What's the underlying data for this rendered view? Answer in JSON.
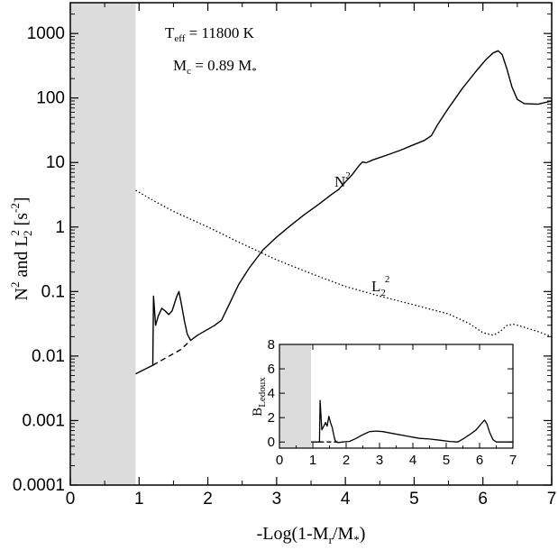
{
  "chart_data": [
    {
      "type": "line",
      "xlabel": {
        "main": "-Log(1-M",
        "sub1": "r",
        "mid": "/M",
        "sub2": "*",
        "end": ")"
      },
      "ylabel": {
        "n": "N",
        "n_exp": "2",
        "and": " and L",
        "l_exp": "2",
        "l_sub": "2",
        "units": " [s",
        "u_exp": "-2",
        "close": "]"
      },
      "xlim": [
        0,
        7
      ],
      "ylim": [
        0.0001,
        3000
      ],
      "yscale": "log",
      "x_ticks": [
        "0",
        "1",
        "2",
        "3",
        "4",
        "5",
        "6",
        "7"
      ],
      "y_ticks": [
        "0.0001",
        "0.001",
        "0.01",
        "0.1",
        "1",
        "10",
        "100",
        "1000"
      ],
      "shaded_region": [
        0,
        0.95
      ],
      "shaded_color": "#dcdcdc",
      "annotations": {
        "teff": {
          "main": "T",
          "sub": "eff",
          "rest": " = 11800 K"
        },
        "mc": {
          "main": "M",
          "sub": "c",
          "rest": " = 0.89 M",
          "sub2": "*"
        },
        "n2": {
          "main": "N",
          "sup": "2"
        },
        "l2": {
          "main": "L",
          "sub": "2",
          "sup": "2"
        }
      },
      "series": [
        {
          "style": "solid",
          "color": "#000000",
          "points": [
            [
              0.95,
              0.0053
            ],
            [
              1.2,
              0.0072
            ],
            [
              1.21,
              0.085
            ],
            [
              1.24,
              0.03
            ],
            [
              1.28,
              0.042
            ],
            [
              1.33,
              0.055
            ],
            [
              1.38,
              0.05
            ],
            [
              1.43,
              0.044
            ],
            [
              1.48,
              0.05
            ],
            [
              1.55,
              0.085
            ],
            [
              1.58,
              0.1
            ],
            [
              1.62,
              0.06
            ],
            [
              1.66,
              0.035
            ],
            [
              1.7,
              0.022
            ],
            [
              1.75,
              0.0175
            ],
            [
              1.85,
              0.021
            ],
            [
              2.0,
              0.026
            ],
            [
              2.1,
              0.03
            ],
            [
              2.2,
              0.036
            ],
            [
              2.3,
              0.06
            ],
            [
              2.45,
              0.13
            ],
            [
              2.6,
              0.23
            ],
            [
              2.8,
              0.44
            ],
            [
              3.0,
              0.7
            ],
            [
              3.2,
              1.05
            ],
            [
              3.4,
              1.55
            ],
            [
              3.6,
              2.2
            ],
            [
              3.8,
              3.2
            ],
            [
              3.9,
              3.8
            ],
            [
              4.0,
              5.0
            ],
            [
              4.1,
              6.5
            ],
            [
              4.2,
              9.0
            ],
            [
              4.25,
              10.2
            ],
            [
              4.3,
              9.9
            ],
            [
              4.4,
              11.0
            ],
            [
              4.6,
              13.0
            ],
            [
              4.8,
              15.5
            ],
            [
              5.0,
              19.0
            ],
            [
              5.15,
              22.0
            ],
            [
              5.25,
              26.0
            ],
            [
              5.35,
              40.0
            ],
            [
              5.5,
              70.0
            ],
            [
              5.7,
              140.0
            ],
            [
              5.9,
              260.0
            ],
            [
              6.05,
              400.0
            ],
            [
              6.15,
              500.0
            ],
            [
              6.22,
              540.0
            ],
            [
              6.28,
              470.0
            ],
            [
              6.35,
              280.0
            ],
            [
              6.42,
              150.0
            ],
            [
              6.5,
              95.0
            ],
            [
              6.6,
              82.0
            ],
            [
              6.8,
              80.0
            ],
            [
              7.0,
              90.0
            ]
          ]
        },
        {
          "style": "dashed",
          "color": "#000000",
          "points": [
            [
              1.2,
              0.0072
            ],
            [
              1.4,
              0.0095
            ],
            [
              1.6,
              0.0125
            ],
            [
              1.75,
              0.0175
            ]
          ]
        },
        {
          "style": "dotted",
          "color": "#000000",
          "points": [
            [
              0.95,
              3.7
            ],
            [
              1.2,
              2.6
            ],
            [
              1.5,
              1.75
            ],
            [
              2.0,
              1.0
            ],
            [
              2.5,
              0.55
            ],
            [
              3.0,
              0.31
            ],
            [
              3.5,
              0.19
            ],
            [
              4.0,
              0.12
            ],
            [
              4.5,
              0.085
            ],
            [
              5.0,
              0.062
            ],
            [
              5.5,
              0.045
            ],
            [
              5.8,
              0.032
            ],
            [
              6.0,
              0.023
            ],
            [
              6.15,
              0.021
            ],
            [
              6.25,
              0.024
            ],
            [
              6.35,
              0.03
            ],
            [
              6.45,
              0.031
            ],
            [
              6.6,
              0.028
            ],
            [
              6.8,
              0.024
            ],
            [
              7.0,
              0.02
            ]
          ]
        }
      ]
    },
    {
      "type": "line",
      "ylabel": {
        "main": "B",
        "sub": "Ledoux"
      },
      "xlim": [
        0,
        7
      ],
      "ylim": [
        -0.5,
        8
      ],
      "x_ticks": [
        "0",
        "1",
        "2",
        "3",
        "4",
        "5",
        "6",
        "7"
      ],
      "y_ticks": [
        "0",
        "2",
        "4",
        "6",
        "8"
      ],
      "shaded_region": [
        0,
        0.95
      ],
      "series": [
        {
          "style": "solid",
          "color": "#000000",
          "points": [
            [
              0.95,
              0
            ],
            [
              1.2,
              0
            ],
            [
              1.22,
              3.4
            ],
            [
              1.27,
              1.0
            ],
            [
              1.33,
              1.3
            ],
            [
              1.38,
              1.6
            ],
            [
              1.43,
              1.3
            ],
            [
              1.48,
              2.1
            ],
            [
              1.53,
              1.6
            ],
            [
              1.58,
              1.2
            ],
            [
              1.62,
              0.7
            ],
            [
              1.66,
              0.2
            ],
            [
              1.7,
              0.0
            ],
            [
              1.75,
              -0.05
            ],
            [
              1.9,
              0
            ],
            [
              2.1,
              0.05
            ],
            [
              2.3,
              0.3
            ],
            [
              2.5,
              0.6
            ],
            [
              2.7,
              0.85
            ],
            [
              2.9,
              0.9
            ],
            [
              3.1,
              0.85
            ],
            [
              3.4,
              0.7
            ],
            [
              3.8,
              0.5
            ],
            [
              4.2,
              0.3
            ],
            [
              4.5,
              0.25
            ],
            [
              4.8,
              0.15
            ],
            [
              5.1,
              0.05
            ],
            [
              5.35,
              0.0
            ],
            [
              5.5,
              0.25
            ],
            [
              5.7,
              0.6
            ],
            [
              5.9,
              1.0
            ],
            [
              6.05,
              1.5
            ],
            [
              6.15,
              1.8
            ],
            [
              6.22,
              1.5
            ],
            [
              6.3,
              0.8
            ],
            [
              6.4,
              0.2
            ],
            [
              6.5,
              0.0
            ],
            [
              7.0,
              0
            ]
          ]
        },
        {
          "style": "dashed",
          "color": "#000000",
          "points": [
            [
              1.2,
              0
            ],
            [
              1.75,
              0
            ]
          ]
        }
      ]
    }
  ]
}
